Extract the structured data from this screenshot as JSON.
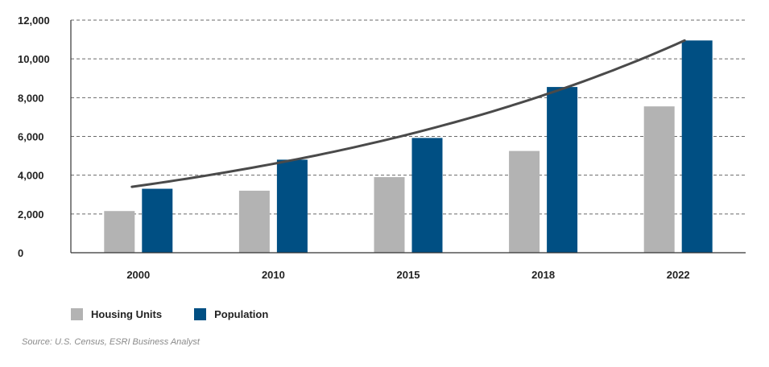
{
  "chart_data": {
    "type": "bar",
    "categories": [
      "2000",
      "2010",
      "2015",
      "2018",
      "2022"
    ],
    "series": [
      {
        "name": "Housing Units",
        "color": "#b3b3b3",
        "values": [
          2150,
          3200,
          3900,
          5250,
          7550
        ]
      },
      {
        "name": "Population",
        "color": "#004f83",
        "values": [
          3300,
          4800,
          5920,
          8550,
          10950
        ]
      }
    ],
    "trendline": {
      "type": "exponential",
      "color": "#4a4a4a",
      "start": 3400,
      "end": 10950
    },
    "yticks": [
      "0",
      "2,000",
      "4,000",
      "6,000",
      "8,000",
      "10,000",
      "12,000"
    ],
    "ylim": [
      0,
      12000
    ],
    "grid": "horizontal dashed",
    "legend_position": "bottom-left",
    "title": "",
    "xlabel": "",
    "ylabel": ""
  },
  "source": "Source: U.S. Census, ESRI Business Analyst"
}
